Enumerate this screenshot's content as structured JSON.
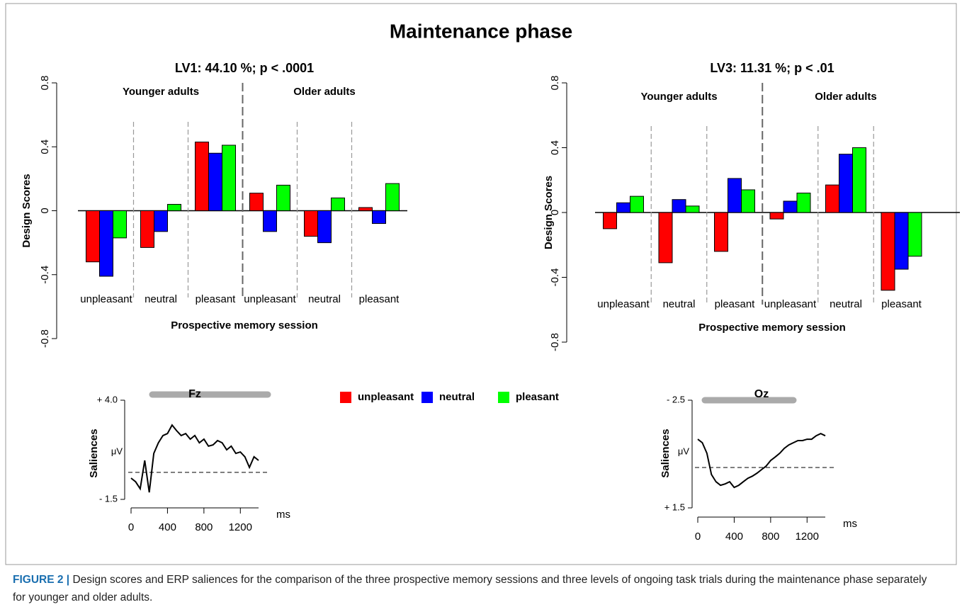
{
  "title": "Maintenance phase",
  "caption": {
    "label": "FIGURE 2 |",
    "text": "Design scores and ERP saliences for the comparison of the three prospective memory sessions and three levels of ongoing task trials during the maintenance phase separately for younger and older adults."
  },
  "chart_data": [
    {
      "type": "bar",
      "title": "LV1: 44.10 %; p < .0001",
      "y_label": "Design Scores",
      "x_label": "Prospective memory session",
      "group_labels": [
        "Younger adults",
        "Older adults"
      ],
      "categories": [
        "unpleasant",
        "neutral",
        "pleasant",
        "unpleasant",
        "neutral",
        "pleasant"
      ],
      "series": [
        {
          "name": "unpleasant",
          "color": "#ff0000",
          "values": [
            -0.32,
            -0.23,
            0.43,
            0.11,
            -0.16,
            0.02
          ]
        },
        {
          "name": "neutral",
          "color": "#0000ff",
          "values": [
            -0.41,
            -0.13,
            0.36,
            -0.13,
            -0.2,
            -0.08
          ]
        },
        {
          "name": "pleasant",
          "color": "#00ff00",
          "values": [
            -0.17,
            0.04,
            0.41,
            0.16,
            0.08,
            0.17
          ]
        }
      ],
      "ylim": [
        -0.8,
        0.8
      ],
      "yticks": [
        -0.8,
        -0.4,
        0,
        0.4,
        0.8
      ]
    },
    {
      "type": "bar",
      "title": "LV3: 11.31 %; p < .01",
      "y_label": "Design Scores",
      "x_label": "Prospective memory session",
      "group_labels": [
        "Younger adults",
        "Older adults"
      ],
      "categories": [
        "unpleasant",
        "neutral",
        "pleasant",
        "unpleasant",
        "neutral",
        "pleasant"
      ],
      "series": [
        {
          "color": "#ff0000",
          "values": [
            -0.1,
            -0.31,
            -0.24,
            -0.04,
            0.17,
            -0.48
          ]
        },
        {
          "color": "#0000ff",
          "values": [
            0.06,
            0.08,
            0.21,
            0.07,
            0.36,
            -0.35
          ]
        },
        {
          "color": "#00ff00",
          "values": [
            0.1,
            0.04,
            0.14,
            0.12,
            0.4,
            -0.27
          ]
        }
      ],
      "ylim": [
        -0.8,
        0.8
      ],
      "yticks": [
        -0.8,
        -0.4,
        0,
        0.4,
        0.8
      ]
    },
    {
      "type": "line",
      "title": "Fz",
      "y_label": "Saliences",
      "y_unit": "μV",
      "x_label": "ms",
      "color": "#000000",
      "x": [
        0,
        50,
        100,
        150,
        200,
        250,
        300,
        350,
        400,
        450,
        500,
        550,
        600,
        650,
        700,
        750,
        800,
        850,
        900,
        950,
        1000,
        1050,
        1100,
        1150,
        1200,
        1250,
        1300,
        1350,
        1400
      ],
      "values": [
        -0.32,
        -0.52,
        -0.91,
        0.66,
        -1.11,
        1.05,
        1.64,
        2.04,
        2.15,
        2.62,
        2.31,
        2.04,
        2.15,
        1.84,
        2.04,
        1.64,
        1.84,
        1.45,
        1.52,
        1.76,
        1.64,
        1.25,
        1.45,
        1.05,
        1.13,
        0.86,
        0.27,
        0.86,
        0.66
      ],
      "xlim": [
        0,
        1400
      ],
      "xticks": [
        0,
        400,
        800,
        1200
      ],
      "ylim": [
        -1.5,
        4.0
      ],
      "yticks": [
        {
          "value": 4.0,
          "label": "+ 4.0"
        },
        {
          "value": -1.5,
          "label": "- 1.5"
        }
      ]
    },
    {
      "type": "line",
      "title": "Oz",
      "y_label": "Saliences",
      "y_unit": "μV",
      "x_label": "ms",
      "color": "#000000",
      "x": [
        0,
        50,
        100,
        150,
        200,
        250,
        300,
        350,
        400,
        450,
        500,
        550,
        600,
        650,
        700,
        750,
        800,
        850,
        900,
        950,
        1000,
        1050,
        1100,
        1150,
        1200,
        1250,
        1300,
        1350,
        1400
      ],
      "values": [
        -1.05,
        -0.92,
        -0.53,
        0.26,
        0.53,
        0.66,
        0.61,
        0.53,
        0.74,
        0.66,
        0.53,
        0.4,
        0.32,
        0.21,
        0.08,
        -0.05,
        -0.26,
        -0.39,
        -0.53,
        -0.71,
        -0.84,
        -0.92,
        -1.0,
        -1.0,
        -1.05,
        -1.05,
        -1.18,
        -1.26,
        -1.18
      ],
      "xlim": [
        0,
        1400
      ],
      "xticks": [
        0,
        400,
        800,
        1200
      ],
      "ylim": [
        1.5,
        -2.5
      ],
      "yticks": [
        {
          "value": -2.5,
          "label": "- 2.5"
        },
        {
          "value": 1.5,
          "label": "+ 1.5"
        }
      ]
    }
  ]
}
